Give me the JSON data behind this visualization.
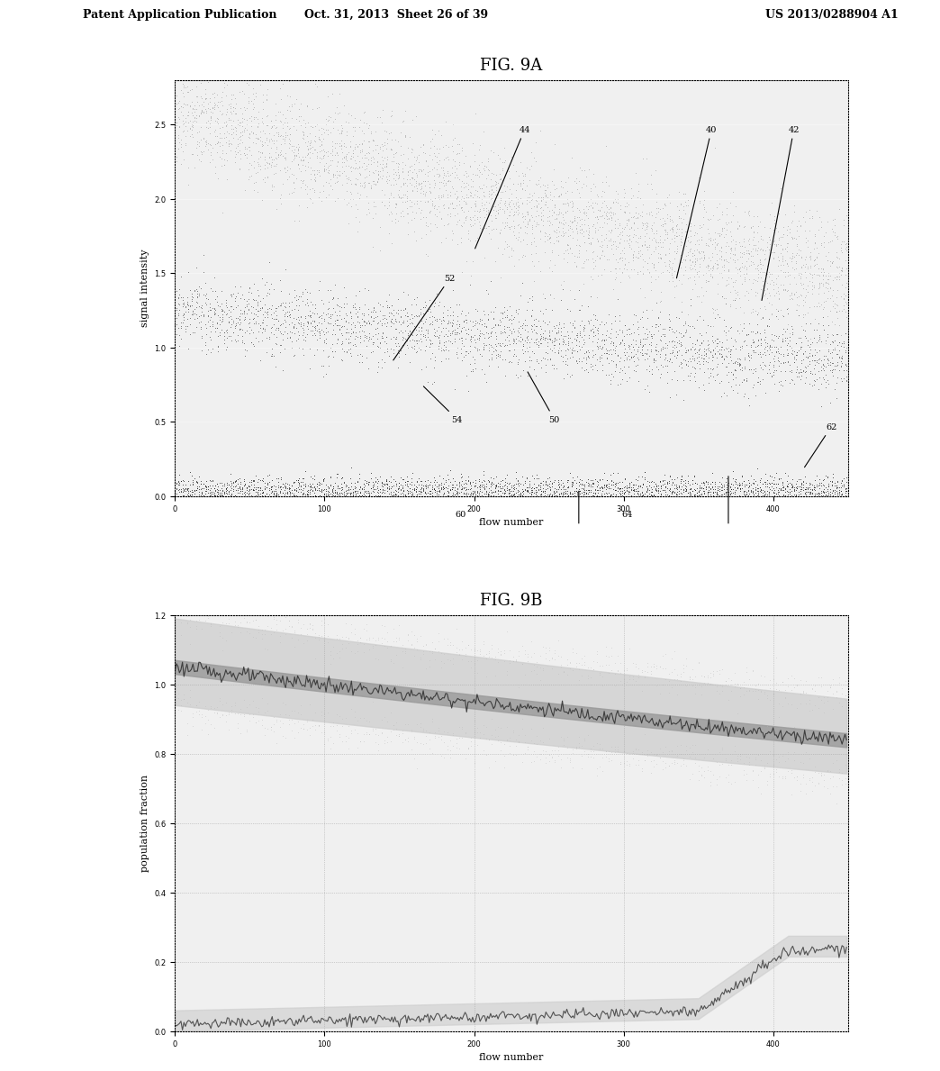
{
  "header_left": "Patent Application Publication",
  "header_mid": "Oct. 31, 2013  Sheet 26 of 39",
  "header_right": "US 2013/0288904 A1",
  "fig9a_title": "FIG. 9A",
  "fig9b_title": "FIG. 9B",
  "fig9a_xlabel": "flow number",
  "fig9a_ylabel": "signal intensity",
  "fig9b_xlabel": "flow number",
  "fig9b_ylabel": "population fraction",
  "fig9a_xlim": [
    0,
    450
  ],
  "fig9a_ylim": [
    0.0,
    2.8
  ],
  "fig9b_xlim": [
    0,
    450
  ],
  "fig9b_ylim": [
    0.0,
    1.2
  ],
  "fig9a_xticks": [
    0,
    100,
    200,
    300,
    400
  ],
  "fig9a_yticks": [
    0.0,
    0.5,
    1.0,
    1.5,
    2.0,
    2.5
  ],
  "fig9b_xticks": [
    0,
    100,
    200,
    300,
    400
  ],
  "fig9b_yticks": [
    0.0,
    0.2,
    0.4,
    0.6,
    0.8,
    1.0,
    1.2
  ],
  "background_color": "#ffffff",
  "plot_bg_color": "#f0f0f0"
}
